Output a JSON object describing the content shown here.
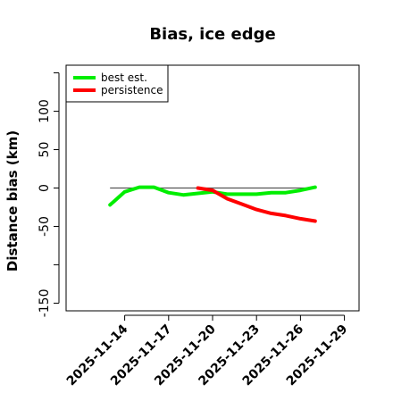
{
  "chart_data": {
    "type": "line",
    "title": "Bias, ice edge",
    "xlabel": "",
    "ylabel": "Distance bias (km)",
    "xlim": [
      "2025-11-10",
      "2025-11-30"
    ],
    "ylim": [
      -160,
      160
    ],
    "yticks": [
      -150,
      -100,
      -50,
      0,
      50,
      100,
      150
    ],
    "ytick_labels": [
      "-150",
      "",
      "-50",
      "0",
      "50",
      "100",
      ""
    ],
    "xticks": [
      "2025-11-14",
      "2025-11-17",
      "2025-11-20",
      "2025-11-23",
      "2025-11-26",
      "2025-11-29"
    ],
    "legend_position": "top-left",
    "reference_line": {
      "y": 0,
      "x_range": [
        "2025-11-13",
        "2025-11-27"
      ],
      "color": "#555555"
    },
    "series": [
      {
        "name": "best est.",
        "color": "#00ee00",
        "x": [
          "2025-11-13",
          "2025-11-14",
          "2025-11-15",
          "2025-11-16",
          "2025-11-17",
          "2025-11-18",
          "2025-11-19",
          "2025-11-20",
          "2025-11-21",
          "2025-11-22",
          "2025-11-23",
          "2025-11-24",
          "2025-11-25",
          "2025-11-26",
          "2025-11-27"
        ],
        "values": [
          -22,
          -5,
          1,
          1,
          -6,
          -9,
          -7,
          -5,
          -8,
          -8,
          -8,
          -6,
          -6,
          -3,
          1
        ]
      },
      {
        "name": "persistence",
        "color": "#ff0000",
        "x": [
          "2025-11-19",
          "2025-11-20",
          "2025-11-21",
          "2025-11-22",
          "2025-11-23",
          "2025-11-24",
          "2025-11-25",
          "2025-11-26",
          "2025-11-27"
        ],
        "values": [
          0,
          -3,
          -14,
          -21,
          -28,
          -33,
          -36,
          -40,
          -43
        ]
      }
    ]
  }
}
